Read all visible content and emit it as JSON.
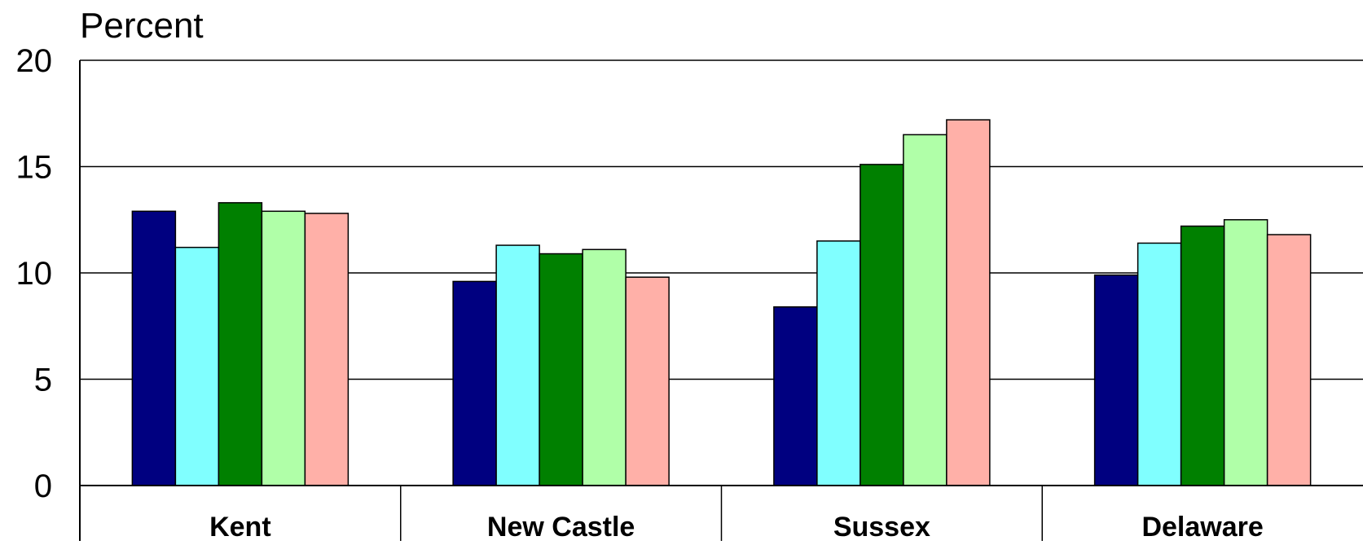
{
  "chart_data": {
    "type": "bar",
    "title": "",
    "ylabel": "Percent",
    "xlabel": "",
    "ylim": [
      0,
      20
    ],
    "yticks": [
      0,
      5,
      10,
      15,
      20
    ],
    "grid": true,
    "categories": [
      "Kent",
      "New Castle",
      "Sussex",
      "Delaware"
    ],
    "series": [
      {
        "color": "#000080",
        "values": [
          12.9,
          9.6,
          8.4,
          9.9
        ]
      },
      {
        "color": "#80FFFF",
        "values": [
          11.2,
          11.3,
          11.5,
          11.4
        ]
      },
      {
        "color": "#008000",
        "values": [
          13.3,
          10.9,
          15.1,
          12.2
        ]
      },
      {
        "color": "#B0FFA8",
        "values": [
          12.9,
          11.1,
          16.5,
          12.5
        ]
      },
      {
        "color": "#FFB0A8",
        "values": [
          12.8,
          9.8,
          17.2,
          11.8
        ]
      }
    ]
  }
}
